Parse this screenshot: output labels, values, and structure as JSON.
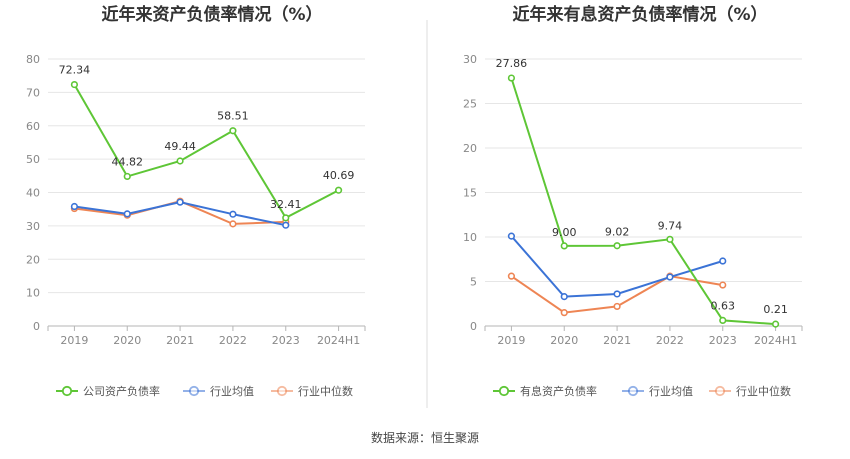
{
  "source_label": "数据来源：恒生聚源",
  "colors": {
    "company": "#5ec636",
    "industry_avg": "#3b73d6",
    "industry_median": "#ee8554",
    "grid": "#e6e6e6",
    "divider": "#dddddd"
  },
  "chart_data": [
    {
      "type": "line",
      "title": "近年来资产负债率情况（%）",
      "categories": [
        "2019",
        "2020",
        "2021",
        "2022",
        "2023",
        "2024H1"
      ],
      "ylim": [
        0,
        80
      ],
      "yticks": [
        "0",
        "10",
        "20",
        "30",
        "40",
        "50",
        "60",
        "70",
        "80"
      ],
      "grid": true,
      "legend_position": "bottom",
      "series": [
        {
          "name": "公司资产负债率",
          "color": "#5ec636",
          "values": [
            72.34,
            44.82,
            49.44,
            58.51,
            32.41,
            40.69
          ],
          "labels": [
            "72.34",
            "44.82",
            "49.44",
            "58.51",
            "32.41",
            "40.69"
          ]
        },
        {
          "name": "行业均值",
          "color": "#3b73d6",
          "values": [
            35.8,
            33.6,
            37.1,
            33.5,
            30.2,
            null
          ]
        },
        {
          "name": "行业中位数",
          "color": "#ee8554",
          "values": [
            35.2,
            33.2,
            37.4,
            30.6,
            31.2,
            null
          ]
        }
      ]
    },
    {
      "type": "line",
      "title": "近年来有息资产负债率情况（%）",
      "categories": [
        "2019",
        "2020",
        "2021",
        "2022",
        "2023",
        "2024H1"
      ],
      "ylim": [
        0,
        30
      ],
      "yticks": [
        "0",
        "5",
        "10",
        "15",
        "20",
        "25",
        "30"
      ],
      "grid": true,
      "legend_position": "bottom",
      "series": [
        {
          "name": "有息资产负债率",
          "color": "#5ec636",
          "values": [
            27.86,
            9.0,
            9.02,
            9.74,
            0.63,
            0.21
          ],
          "labels": [
            "27.86",
            "9.00",
            "9.02",
            "9.74",
            "0.63",
            "0.21"
          ]
        },
        {
          "name": "行业均值",
          "color": "#3b73d6",
          "values": [
            10.1,
            3.3,
            3.6,
            5.5,
            7.3,
            null
          ]
        },
        {
          "name": "行业中位数",
          "color": "#ee8554",
          "values": [
            5.6,
            1.5,
            2.2,
            5.6,
            4.6,
            null
          ]
        }
      ]
    }
  ]
}
